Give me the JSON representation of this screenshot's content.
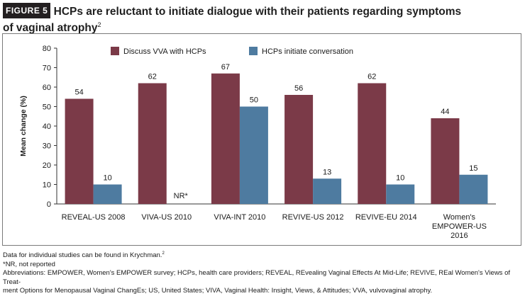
{
  "figure": {
    "badge": "FIGURE 5",
    "title_line1": "HCPs are reluctant to initiate dialogue with their patients regarding symptoms",
    "title_line2": "of vaginal atrophy",
    "title_ref": "2"
  },
  "chart_data": {
    "type": "bar",
    "ylabel": "Mean change (%)",
    "xlabel": "",
    "ylim": [
      0,
      80
    ],
    "yticks": [
      0,
      10,
      20,
      30,
      40,
      50,
      60,
      70,
      80
    ],
    "grid": false,
    "legend_position": "top-left",
    "categories": [
      [
        "REVEAL-US 2008"
      ],
      [
        "VIVA-US 2010"
      ],
      [
        "VIVA-INT 2010"
      ],
      [
        "REVIVE-US 2012"
      ],
      [
        "REVIVE-EU 2014"
      ],
      [
        "Women's",
        "EMPOWER-US",
        "2016"
      ]
    ],
    "series": [
      {
        "name": "Discuss VVA with HCPs",
        "color": "#7b3a48",
        "values": [
          54,
          62,
          67,
          56,
          62,
          44
        ],
        "labels": [
          "54",
          "62",
          "67",
          "56",
          "62",
          "44"
        ]
      },
      {
        "name": "HCPs initiate conversation",
        "color": "#4e7ba0",
        "values": [
          10,
          null,
          50,
          13,
          10,
          15
        ],
        "labels": [
          "10",
          "NR*",
          "50",
          "13",
          "10",
          "15"
        ]
      }
    ]
  },
  "notes": {
    "line1": "Data for individual studies can be found in Krychman.",
    "line1_ref": "2",
    "line2": "*NR, not reported",
    "line3": "Abbreviations: EMPOWER, Women's EMPOWER survey; HCPs, health care providers; REVEAL, REvealing Vaginal Effects At Mid-Life; REVIVE, REal Women's Views of Treat-",
    "line4": "ment Options for Menopausal Vaginal ChangEs; US, United States; VIVA, Vaginal Health: Insight, Views, & Attitudes; VVA, vulvovaginal atrophy."
  }
}
